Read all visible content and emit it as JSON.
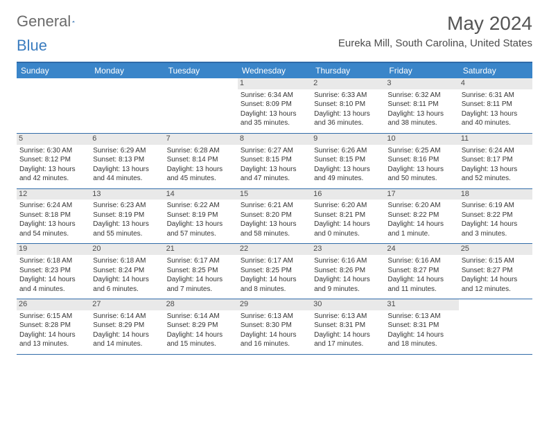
{
  "brand": {
    "word1": "General",
    "word2": "Blue"
  },
  "title": "May 2024",
  "location": "Eureka Mill, South Carolina, United States",
  "colors": {
    "header_bar": "#3a85c9",
    "border": "#2f6aa8",
    "daynum_bg": "#e9e9e9",
    "text": "#333333",
    "title_text": "#555555"
  },
  "day_names": [
    "Sunday",
    "Monday",
    "Tuesday",
    "Wednesday",
    "Thursday",
    "Friday",
    "Saturday"
  ],
  "weeks": [
    [
      null,
      null,
      null,
      {
        "n": "1",
        "sr": "Sunrise: 6:34 AM",
        "ss": "Sunset: 8:09 PM",
        "d1": "Daylight: 13 hours",
        "d2": "and 35 minutes."
      },
      {
        "n": "2",
        "sr": "Sunrise: 6:33 AM",
        "ss": "Sunset: 8:10 PM",
        "d1": "Daylight: 13 hours",
        "d2": "and 36 minutes."
      },
      {
        "n": "3",
        "sr": "Sunrise: 6:32 AM",
        "ss": "Sunset: 8:11 PM",
        "d1": "Daylight: 13 hours",
        "d2": "and 38 minutes."
      },
      {
        "n": "4",
        "sr": "Sunrise: 6:31 AM",
        "ss": "Sunset: 8:11 PM",
        "d1": "Daylight: 13 hours",
        "d2": "and 40 minutes."
      }
    ],
    [
      {
        "n": "5",
        "sr": "Sunrise: 6:30 AM",
        "ss": "Sunset: 8:12 PM",
        "d1": "Daylight: 13 hours",
        "d2": "and 42 minutes."
      },
      {
        "n": "6",
        "sr": "Sunrise: 6:29 AM",
        "ss": "Sunset: 8:13 PM",
        "d1": "Daylight: 13 hours",
        "d2": "and 44 minutes."
      },
      {
        "n": "7",
        "sr": "Sunrise: 6:28 AM",
        "ss": "Sunset: 8:14 PM",
        "d1": "Daylight: 13 hours",
        "d2": "and 45 minutes."
      },
      {
        "n": "8",
        "sr": "Sunrise: 6:27 AM",
        "ss": "Sunset: 8:15 PM",
        "d1": "Daylight: 13 hours",
        "d2": "and 47 minutes."
      },
      {
        "n": "9",
        "sr": "Sunrise: 6:26 AM",
        "ss": "Sunset: 8:15 PM",
        "d1": "Daylight: 13 hours",
        "d2": "and 49 minutes."
      },
      {
        "n": "10",
        "sr": "Sunrise: 6:25 AM",
        "ss": "Sunset: 8:16 PM",
        "d1": "Daylight: 13 hours",
        "d2": "and 50 minutes."
      },
      {
        "n": "11",
        "sr": "Sunrise: 6:24 AM",
        "ss": "Sunset: 8:17 PM",
        "d1": "Daylight: 13 hours",
        "d2": "and 52 minutes."
      }
    ],
    [
      {
        "n": "12",
        "sr": "Sunrise: 6:24 AM",
        "ss": "Sunset: 8:18 PM",
        "d1": "Daylight: 13 hours",
        "d2": "and 54 minutes."
      },
      {
        "n": "13",
        "sr": "Sunrise: 6:23 AM",
        "ss": "Sunset: 8:19 PM",
        "d1": "Daylight: 13 hours",
        "d2": "and 55 minutes."
      },
      {
        "n": "14",
        "sr": "Sunrise: 6:22 AM",
        "ss": "Sunset: 8:19 PM",
        "d1": "Daylight: 13 hours",
        "d2": "and 57 minutes."
      },
      {
        "n": "15",
        "sr": "Sunrise: 6:21 AM",
        "ss": "Sunset: 8:20 PM",
        "d1": "Daylight: 13 hours",
        "d2": "and 58 minutes."
      },
      {
        "n": "16",
        "sr": "Sunrise: 6:20 AM",
        "ss": "Sunset: 8:21 PM",
        "d1": "Daylight: 14 hours",
        "d2": "and 0 minutes."
      },
      {
        "n": "17",
        "sr": "Sunrise: 6:20 AM",
        "ss": "Sunset: 8:22 PM",
        "d1": "Daylight: 14 hours",
        "d2": "and 1 minute."
      },
      {
        "n": "18",
        "sr": "Sunrise: 6:19 AM",
        "ss": "Sunset: 8:22 PM",
        "d1": "Daylight: 14 hours",
        "d2": "and 3 minutes."
      }
    ],
    [
      {
        "n": "19",
        "sr": "Sunrise: 6:18 AM",
        "ss": "Sunset: 8:23 PM",
        "d1": "Daylight: 14 hours",
        "d2": "and 4 minutes."
      },
      {
        "n": "20",
        "sr": "Sunrise: 6:18 AM",
        "ss": "Sunset: 8:24 PM",
        "d1": "Daylight: 14 hours",
        "d2": "and 6 minutes."
      },
      {
        "n": "21",
        "sr": "Sunrise: 6:17 AM",
        "ss": "Sunset: 8:25 PM",
        "d1": "Daylight: 14 hours",
        "d2": "and 7 minutes."
      },
      {
        "n": "22",
        "sr": "Sunrise: 6:17 AM",
        "ss": "Sunset: 8:25 PM",
        "d1": "Daylight: 14 hours",
        "d2": "and 8 minutes."
      },
      {
        "n": "23",
        "sr": "Sunrise: 6:16 AM",
        "ss": "Sunset: 8:26 PM",
        "d1": "Daylight: 14 hours",
        "d2": "and 9 minutes."
      },
      {
        "n": "24",
        "sr": "Sunrise: 6:16 AM",
        "ss": "Sunset: 8:27 PM",
        "d1": "Daylight: 14 hours",
        "d2": "and 11 minutes."
      },
      {
        "n": "25",
        "sr": "Sunrise: 6:15 AM",
        "ss": "Sunset: 8:27 PM",
        "d1": "Daylight: 14 hours",
        "d2": "and 12 minutes."
      }
    ],
    [
      {
        "n": "26",
        "sr": "Sunrise: 6:15 AM",
        "ss": "Sunset: 8:28 PM",
        "d1": "Daylight: 14 hours",
        "d2": "and 13 minutes."
      },
      {
        "n": "27",
        "sr": "Sunrise: 6:14 AM",
        "ss": "Sunset: 8:29 PM",
        "d1": "Daylight: 14 hours",
        "d2": "and 14 minutes."
      },
      {
        "n": "28",
        "sr": "Sunrise: 6:14 AM",
        "ss": "Sunset: 8:29 PM",
        "d1": "Daylight: 14 hours",
        "d2": "and 15 minutes."
      },
      {
        "n": "29",
        "sr": "Sunrise: 6:13 AM",
        "ss": "Sunset: 8:30 PM",
        "d1": "Daylight: 14 hours",
        "d2": "and 16 minutes."
      },
      {
        "n": "30",
        "sr": "Sunrise: 6:13 AM",
        "ss": "Sunset: 8:31 PM",
        "d1": "Daylight: 14 hours",
        "d2": "and 17 minutes."
      },
      {
        "n": "31",
        "sr": "Sunrise: 6:13 AM",
        "ss": "Sunset: 8:31 PM",
        "d1": "Daylight: 14 hours",
        "d2": "and 18 minutes."
      },
      null
    ]
  ]
}
